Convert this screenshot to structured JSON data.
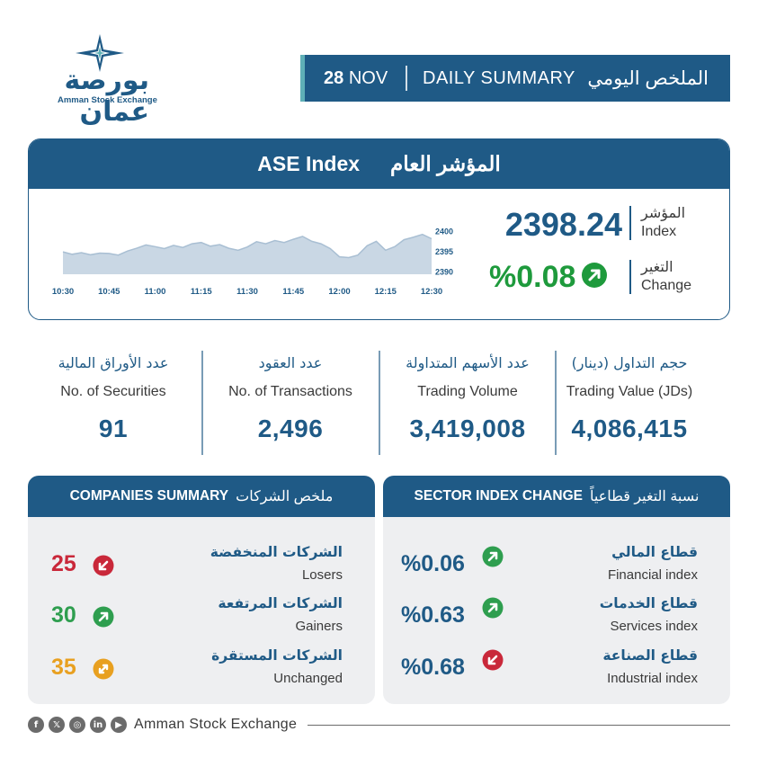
{
  "logo": {
    "arabic": "بورصة عمان",
    "english": "Amman Stock Exchange"
  },
  "header": {
    "day": "28",
    "month": "NOV",
    "title_en": "DAILY SUMMARY",
    "title_ar": "الملخص اليومي",
    "accent_color": "#5fb0b7",
    "bg_color": "#1f5a86"
  },
  "index_card": {
    "title_en": "ASE Index",
    "title_ar": "المؤشر العام",
    "index_value": "2398.24",
    "index_label_ar": "المؤشر",
    "index_label_en": "Index",
    "change_value": "%0.08",
    "change_label_ar": "التغير",
    "change_label_en": "Change",
    "change_direction": "up",
    "change_icon": "arrow-up-right-icon"
  },
  "chart_data": {
    "type": "area",
    "x_ticks": [
      "10:30",
      "10:45",
      "11:00",
      "11:15",
      "11:30",
      "11:45",
      "12:00",
      "12:15",
      "12:30"
    ],
    "y_ticks": [
      "2390",
      "2395",
      "2400"
    ],
    "ylim": [
      2389.5,
      2401
    ],
    "x": [
      "10:30",
      "10:33",
      "10:36",
      "10:39",
      "10:42",
      "10:45",
      "10:48",
      "10:51",
      "10:54",
      "10:57",
      "11:00",
      "11:03",
      "11:06",
      "11:09",
      "11:12",
      "11:15",
      "11:18",
      "11:21",
      "11:24",
      "11:27",
      "11:30",
      "11:33",
      "11:36",
      "11:39",
      "11:42",
      "11:45",
      "11:48",
      "11:51",
      "11:54",
      "11:57",
      "12:00",
      "12:03",
      "12:06",
      "12:09",
      "12:12",
      "12:15",
      "12:18",
      "12:21",
      "12:24",
      "12:27",
      "12:30"
    ],
    "values": [
      2395.0,
      2394.4,
      2394.8,
      2394.3,
      2394.7,
      2394.6,
      2394.2,
      2395.2,
      2395.9,
      2396.7,
      2396.3,
      2395.8,
      2396.6,
      2396.1,
      2397.0,
      2397.3,
      2396.4,
      2396.8,
      2395.9,
      2395.4,
      2396.2,
      2397.5,
      2397.0,
      2397.8,
      2397.3,
      2398.1,
      2398.8,
      2397.6,
      2397.0,
      2395.8,
      2393.8,
      2393.6,
      2394.2,
      2396.5,
      2397.6,
      2395.4,
      2396.3,
      2398.0,
      2398.6,
      2399.3,
      2398.24
    ],
    "fill_color": "#c9d7e4",
    "line_color": "#a9bfd3"
  },
  "stats": [
    {
      "label_ar": "حجم التداول (دينار)",
      "label_en": "Trading Value (JDs)",
      "value": "4,086,415"
    },
    {
      "label_ar": "عدد الأسهم المتداولة",
      "label_en": "Trading Volume",
      "value": "3,419,008"
    },
    {
      "label_ar": "عدد العقود",
      "label_en": "No. of Transactions",
      "value": "2,496"
    },
    {
      "label_ar": "عدد الأوراق المالية",
      "label_en": "No. of Securities",
      "value": "91"
    }
  ],
  "sectors": {
    "title_en": "SECTOR INDEX CHANGE",
    "title_ar": "نسبة التغير قطاعياً",
    "items": [
      {
        "label_ar": "قطاع المالي",
        "label_en": "Financial index",
        "value": "%0.06",
        "direction": "up",
        "color": "#2e9e4f"
      },
      {
        "label_ar": "قطاع الخدمات",
        "label_en": "Services index",
        "value": "%0.63",
        "direction": "up",
        "color": "#2e9e4f"
      },
      {
        "label_ar": "قطاع الصناعة",
        "label_en": "Industrial index",
        "value": "%0.68",
        "direction": "down",
        "color": "#c9283a"
      }
    ]
  },
  "companies": {
    "title_en": "COMPANIES SUMMARY",
    "title_ar": "ملخص الشركات",
    "items": [
      {
        "label_ar": "الشركات المنخفضة",
        "label_en": "Losers",
        "value": "25",
        "direction": "down",
        "color": "#c9283a"
      },
      {
        "label_ar": "الشركات المرتفعة",
        "label_en": "Gainers",
        "value": "30",
        "direction": "up",
        "color": "#2e9e4f"
      },
      {
        "label_ar": "الشركات المستقرة",
        "label_en": "Unchanged",
        "value": "35",
        "direction": "both",
        "color": "#e8a020"
      }
    ]
  },
  "footer": {
    "text": "Amman Stock Exchange",
    "social_icons": [
      "facebook-icon",
      "x-icon",
      "instagram-icon",
      "linkedin-icon",
      "youtube-icon"
    ]
  }
}
